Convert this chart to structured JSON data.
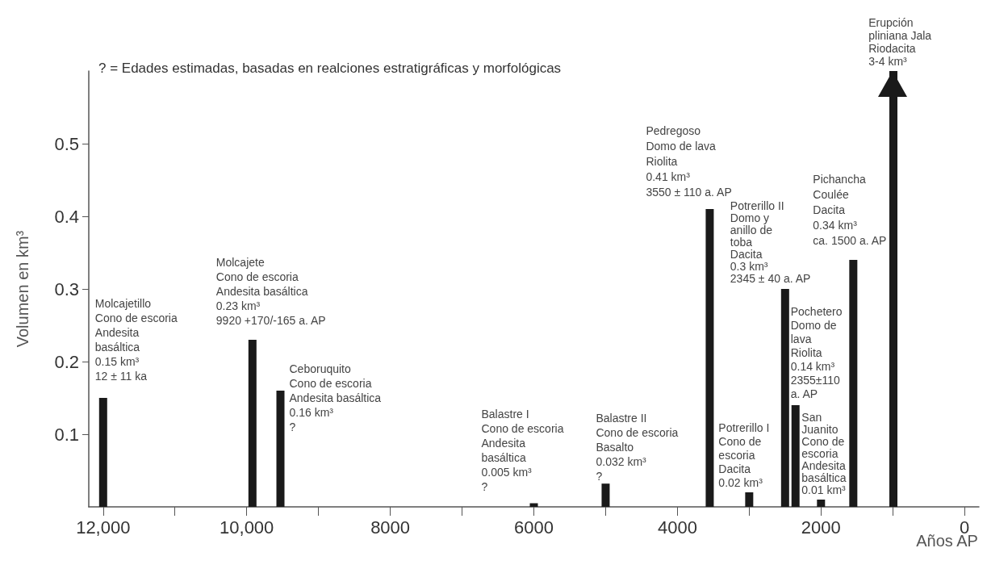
{
  "chart_data": {
    "type": "bar",
    "ylabel": "Volumen en km³",
    "xlabel": "Años AP",
    "x": [
      12000,
      9920,
      9530,
      6000,
      5000,
      3550,
      3000,
      2500,
      2355,
      2000,
      1550
    ],
    "values": [
      0.15,
      0.23,
      0.16,
      0.005,
      0.032,
      0.41,
      0.02,
      0.3,
      0.14,
      0.01,
      0.34
    ],
    "color": "#1a1a1a",
    "xlim": [
      12200,
      -200
    ],
    "xticks": [
      {
        "value": 12000,
        "label": "12,000"
      },
      {
        "value": 11000,
        "label": null
      },
      {
        "value": 10000,
        "label": "10,000"
      },
      {
        "value": 9000,
        "label": null
      },
      8000,
      {
        "value": 7000,
        "label": null
      },
      6000,
      {
        "value": 5000,
        "label": null
      },
      4000,
      {
        "value": 3000,
        "label": null
      },
      2000,
      {
        "value": 1000,
        "label": null
      },
      0
    ],
    "ylim": [
      0,
      0.6
    ],
    "yticks": [
      0.1,
      0.2,
      0.3,
      0.4,
      0.5
    ],
    "grid": false,
    "ref_lines": [
      {
        "axis": "x",
        "value": 1000,
        "label": "Erupción\npliniana Jala\nRiodacita\n3-4 km³",
        "color": "#1a1a1a"
      }
    ],
    "annotations": [
      "? = Edades estimadas, basadas en realciones estratigráficas y morfológicas",
      {
        "text": "Molcajetillo\nCono de escoria\nAndesita\nbasáltica\n0.15 km³\n12 ± 11 ka",
        "x": 12000,
        "y": 0.15
      },
      {
        "text": "Molcajete\nCono de escoria\nAndesita basáltica\n0.23 km³\n9920 +170/-165 a. AP",
        "x": 9920,
        "y": 0.23
      },
      {
        "text": "Ceboruquito\nCono de escoria\nAndesita basáltica\n0.16 km³\n?",
        "x": 9530,
        "y": 0.16
      },
      {
        "text": "Balastre I\nCono de escoria\nAndesita\nbasáltica\n0.005 km³\n?",
        "x": 6000,
        "y": 0.005
      },
      {
        "text": "Balastre II\nCono de escoria\nBasalto\n0.032 km³\n?",
        "x": 5000,
        "y": 0.032
      },
      {
        "text": "Pedregoso\nDomo de lava\nRiolita\n0.41 km³\n3550 ± 110 a. AP",
        "x": 3550,
        "y": 0.41
      },
      {
        "text": "Potrerillo I\nCono de\nescoria\nDacita\n0.02 km³",
        "x": 3000,
        "y": 0.02
      },
      {
        "text": "Potrerillo II\nDomo y\nanillo de\ntoba\nDacita\n0.3 km³\n2345 ± 40 a. AP",
        "x": 2500,
        "y": 0.3
      },
      {
        "text": "Pochetero\nDomo de\nlava\nRiolita\n0.14 km³\n2355±110\na. AP",
        "x": 2355,
        "y": 0.14
      },
      {
        "text": "San\nJuanito\nCono de\nescoria\nAndesita\nbasáltica\n0.01 km³",
        "x": 2000,
        "y": 0.01
      },
      {
        "text": "Pichancha\nCoulée\nDacita\n0.34 km³\nca. 1500 a. AP",
        "x": 1550,
        "y": 0.34
      }
    ]
  }
}
